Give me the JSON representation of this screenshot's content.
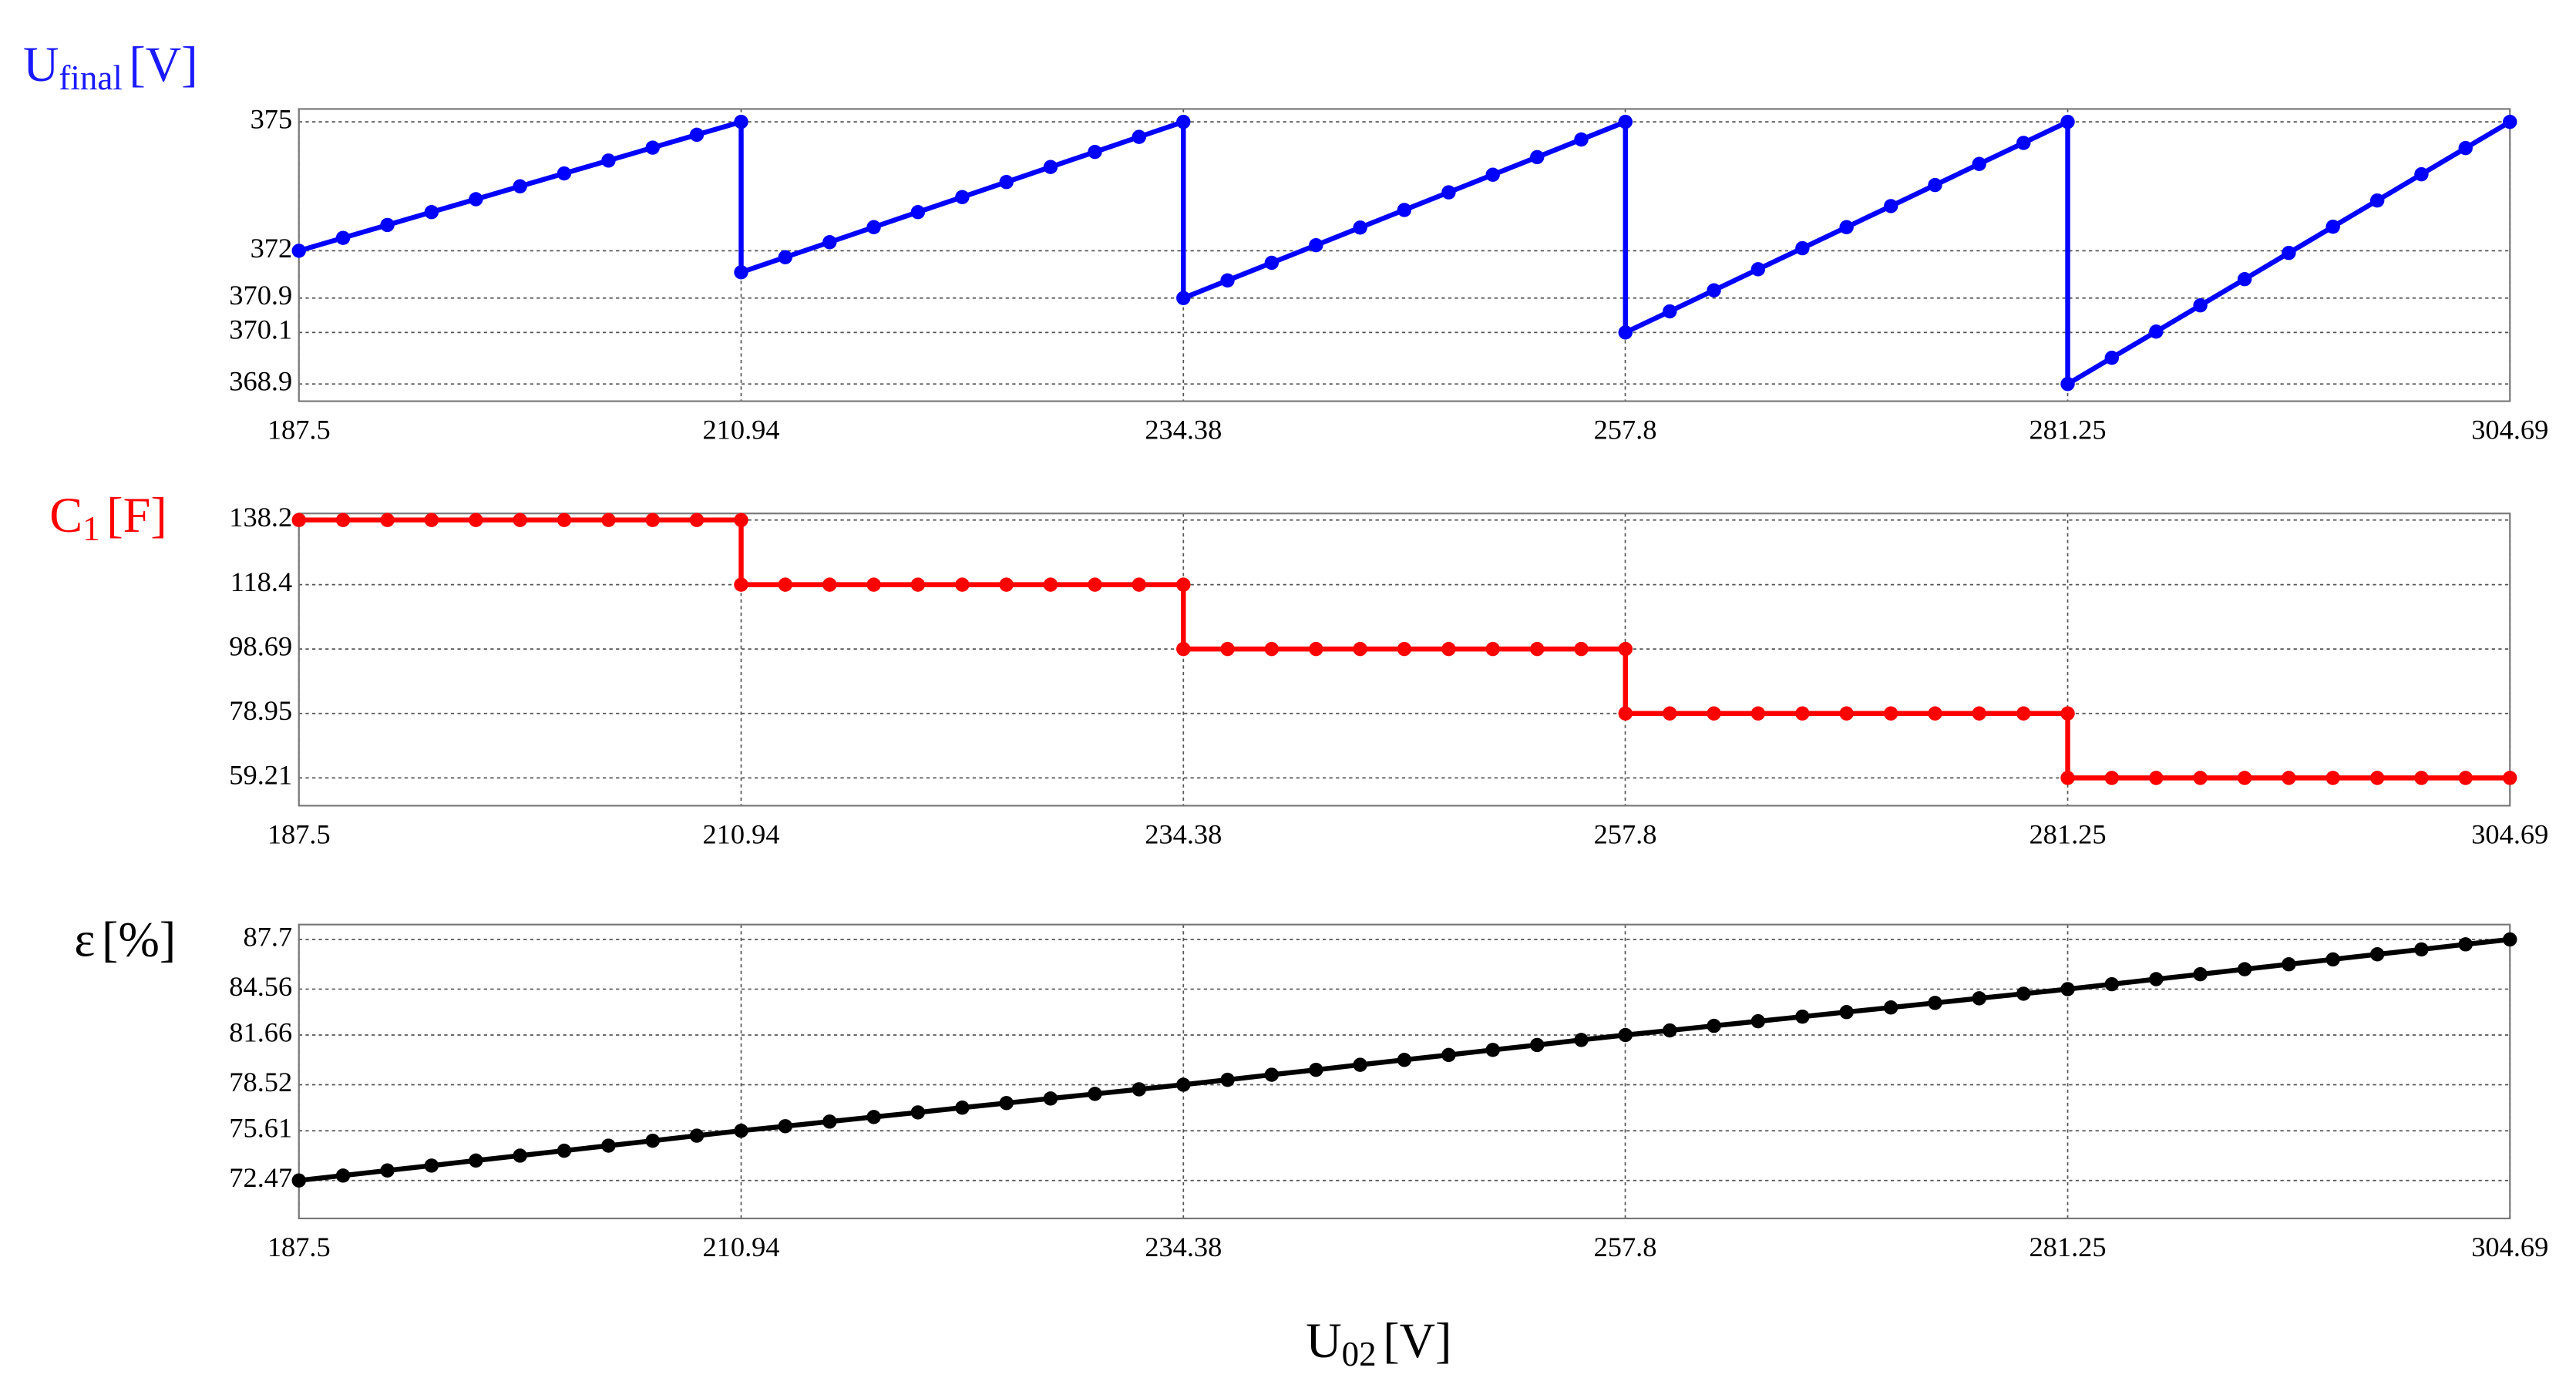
{
  "chart_data": [
    {
      "type": "line",
      "ylabel": {
        "main": "U",
        "sub": "final",
        "unit": "[V]"
      },
      "ylabel_color": "#1a1aff",
      "x": [
        187.5,
        189.84,
        192.19,
        194.53,
        196.88,
        199.22,
        201.56,
        203.91,
        206.25,
        208.59,
        210.94,
        210.94,
        213.28,
        215.63,
        217.97,
        220.31,
        222.66,
        225.0,
        227.34,
        229.69,
        232.03,
        234.38,
        234.38,
        236.72,
        239.06,
        241.41,
        243.75,
        246.09,
        248.44,
        250.78,
        253.13,
        255.47,
        257.81,
        257.81,
        260.16,
        262.5,
        264.84,
        267.19,
        269.53,
        271.88,
        274.22,
        276.56,
        278.91,
        281.25,
        281.25,
        283.59,
        285.94,
        288.28,
        290.63,
        292.97,
        295.31,
        297.66,
        300.0,
        302.34,
        304.69
      ],
      "series": [
        {
          "color": "#0000ff",
          "values": [
            372,
            372.3,
            372.6,
            372.9,
            373.2,
            373.5,
            373.8,
            374.1,
            374.4,
            374.7,
            375,
            371.5,
            371.85,
            372.2,
            372.55,
            372.9,
            373.25,
            373.6,
            373.95,
            374.3,
            374.65,
            375,
            370.9,
            371.31,
            371.72,
            372.13,
            372.54,
            372.95,
            373.36,
            373.77,
            374.18,
            374.59,
            375,
            370.1,
            370.59,
            371.08,
            371.57,
            372.06,
            372.55,
            373.04,
            373.53,
            374.02,
            374.51,
            375,
            368.9,
            369.51,
            370.12,
            370.73,
            371.34,
            371.95,
            372.56,
            373.17,
            373.78,
            374.39,
            375
          ]
        }
      ],
      "xlim": [
        187.5,
        304.69
      ],
      "xticks": [
        187.5,
        210.94,
        234.38,
        257.8,
        281.25,
        304.69
      ],
      "ylim": [
        368.5,
        375.3
      ],
      "yticks": [
        368.9,
        370.1,
        370.9,
        372,
        375
      ],
      "grid": true,
      "markers": true
    },
    {
      "type": "line",
      "ylabel": {
        "main": "C",
        "sub": "1",
        "unit": "[F]"
      },
      "ylabel_color": "#ff0000",
      "x": [
        187.5,
        189.84,
        192.19,
        194.53,
        196.88,
        199.22,
        201.56,
        203.91,
        206.25,
        208.59,
        210.94,
        210.94,
        213.28,
        215.63,
        217.97,
        220.31,
        222.66,
        225.0,
        227.34,
        229.69,
        232.03,
        234.38,
        234.38,
        236.72,
        239.06,
        241.41,
        243.75,
        246.09,
        248.44,
        250.78,
        253.13,
        255.47,
        257.81,
        257.81,
        260.16,
        262.5,
        264.84,
        267.19,
        269.53,
        271.88,
        274.22,
        276.56,
        278.91,
        281.25,
        281.25,
        283.59,
        285.94,
        288.28,
        290.63,
        292.97,
        295.31,
        297.66,
        300.0,
        302.34,
        304.69
      ],
      "series": [
        {
          "color": "#ff0000",
          "values": [
            138.2,
            138.2,
            138.2,
            138.2,
            138.2,
            138.2,
            138.2,
            138.2,
            138.2,
            138.2,
            138.2,
            118.4,
            118.4,
            118.4,
            118.4,
            118.4,
            118.4,
            118.4,
            118.4,
            118.4,
            118.4,
            118.4,
            98.69,
            98.69,
            98.69,
            98.69,
            98.69,
            98.69,
            98.69,
            98.69,
            98.69,
            98.69,
            98.69,
            78.95,
            78.95,
            78.95,
            78.95,
            78.95,
            78.95,
            78.95,
            78.95,
            78.95,
            78.95,
            78.95,
            59.21,
            59.21,
            59.21,
            59.21,
            59.21,
            59.21,
            59.21,
            59.21,
            59.21,
            59.21,
            59.21
          ]
        }
      ],
      "xlim": [
        187.5,
        304.69
      ],
      "xticks": [
        187.5,
        210.94,
        234.38,
        257.8,
        281.25,
        304.69
      ],
      "ylim": [
        50.7,
        140.2
      ],
      "yticks": [
        59.21,
        78.95,
        98.69,
        118.4,
        138.2
      ],
      "grid": true,
      "markers": true
    },
    {
      "type": "line",
      "ylabel": {
        "main": "ε",
        "sub": "",
        "unit": "[%]"
      },
      "ylabel_color": "#000000",
      "xlabel": {
        "main": "U",
        "sub": "02",
        "unit": "[V]"
      },
      "x": [
        187.5,
        189.84,
        192.19,
        194.53,
        196.88,
        199.22,
        201.56,
        203.91,
        206.25,
        208.59,
        210.94,
        213.28,
        215.63,
        217.97,
        220.31,
        222.66,
        225.0,
        227.34,
        229.69,
        232.03,
        234.38,
        236.72,
        239.06,
        241.41,
        243.75,
        246.09,
        248.44,
        250.78,
        253.13,
        255.47,
        257.81,
        260.16,
        262.5,
        264.84,
        267.19,
        269.53,
        271.88,
        274.22,
        276.56,
        278.91,
        281.25,
        283.59,
        285.94,
        288.28,
        290.63,
        292.97,
        295.31,
        297.66,
        300.0,
        302.34,
        304.69
      ],
      "series": [
        {
          "color": "#000000",
          "values": [
            72.47,
            72.78,
            73.1,
            73.41,
            73.73,
            74.04,
            74.35,
            74.67,
            74.98,
            75.3,
            75.61,
            75.9,
            76.19,
            76.48,
            76.77,
            77.07,
            77.36,
            77.65,
            77.94,
            78.23,
            78.52,
            78.83,
            79.15,
            79.46,
            79.78,
            80.09,
            80.4,
            80.72,
            81.03,
            81.35,
            81.66,
            81.95,
            82.24,
            82.53,
            82.82,
            83.11,
            83.4,
            83.69,
            83.98,
            84.27,
            84.56,
            84.87,
            85.19,
            85.5,
            85.82,
            86.13,
            86.44,
            86.76,
            87.07,
            87.39,
            87.7
          ]
        }
      ],
      "xlim": [
        187.5,
        304.69
      ],
      "xticks": [
        187.5,
        210.94,
        234.38,
        257.8,
        281.25,
        304.69
      ],
      "ylim": [
        70.07,
        88.64
      ],
      "yticks": [
        72.47,
        75.61,
        78.52,
        81.66,
        84.56,
        87.7
      ],
      "grid": true,
      "markers": true
    }
  ]
}
